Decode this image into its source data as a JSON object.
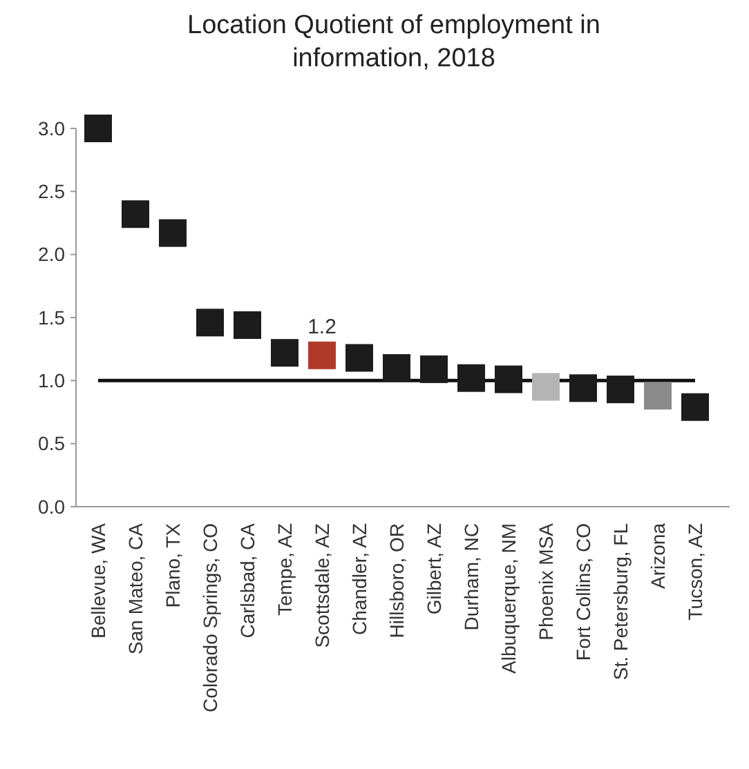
{
  "chart_data": {
    "type": "scatter",
    "title": "Location Quotient of employment in\ninformation, 2018",
    "categories": [
      "Bellevue, WA",
      "San Mateo, CA",
      "Plano, TX",
      "Colorado Springs, CO",
      "Carlsbad, CA",
      "Tempe, AZ",
      "Scottsdale, AZ",
      "Chandler, AZ",
      "Hillsboro, OR",
      "Gilbert, AZ",
      "Durham, NC",
      "Albuquerque, NM",
      "Phoenix MSA",
      "Fort Collins, CO",
      "St. Petersburg, FL",
      "Arizona",
      "Tucson, AZ"
    ],
    "values": [
      3.0,
      2.32,
      2.17,
      1.46,
      1.44,
      1.22,
      1.2,
      1.18,
      1.1,
      1.09,
      1.02,
      1.01,
      0.95,
      0.94,
      0.93,
      0.88,
      0.79
    ],
    "colors": [
      "#1c1c1c",
      "#1c1c1c",
      "#1c1c1c",
      "#1c1c1c",
      "#1c1c1c",
      "#1c1c1c",
      "#b03a2a",
      "#1c1c1c",
      "#1c1c1c",
      "#1c1c1c",
      "#1c1c1c",
      "#1c1c1c",
      "#b4b4b4",
      "#1c1c1c",
      "#1c1c1c",
      "#8a8a8a",
      "#1c1c1c"
    ],
    "value_labels": [
      null,
      null,
      null,
      null,
      null,
      null,
      "1.2",
      null,
      null,
      null,
      null,
      null,
      null,
      null,
      null,
      null,
      null
    ],
    "marker": "square",
    "ylim": [
      0,
      3.0
    ],
    "yticks": [
      {
        "value": 0,
        "label": "0.0"
      },
      0.5,
      {
        "value": 1,
        "label": "1.0"
      },
      1.5,
      {
        "value": 2,
        "label": "2.0"
      },
      2.5,
      {
        "value": 3,
        "label": "3.0"
      }
    ],
    "ref_lines": [
      {
        "axis": "y",
        "value": 1,
        "color": "#111111"
      }
    ],
    "grid": false
  }
}
